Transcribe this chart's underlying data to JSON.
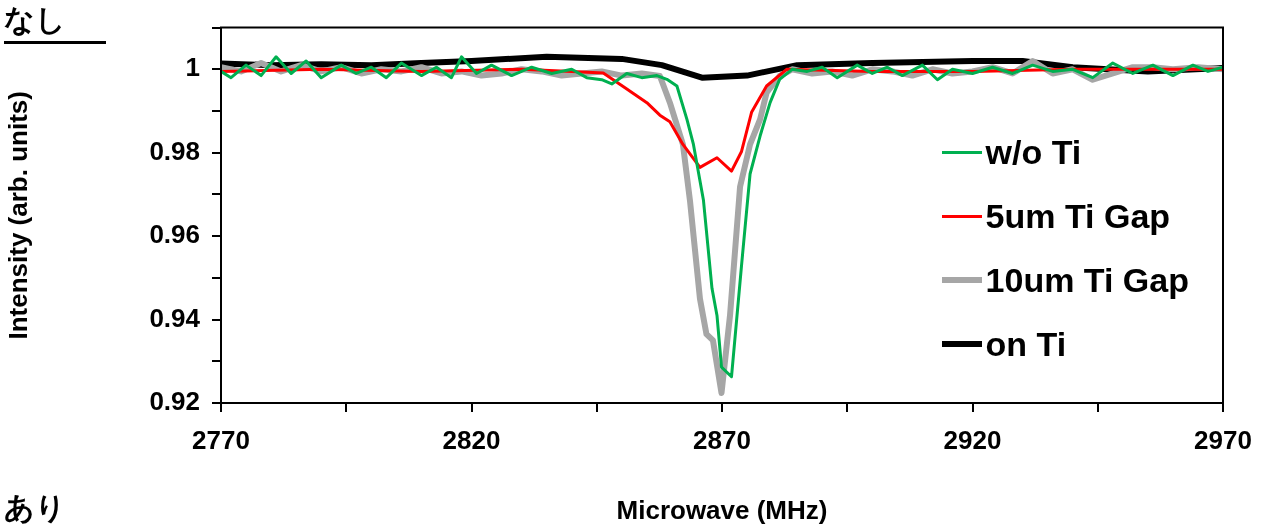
{
  "chart_data": {
    "type": "line",
    "xlabel": "Microwave (MHz)",
    "ylabel": "Intensity (arb. units)",
    "annotations": [
      "なし",
      "あり"
    ],
    "xlim": [
      2770,
      2970
    ],
    "xticks": [
      2770,
      {
        "value": 2795,
        "label": null
      },
      2820,
      {
        "value": 2845,
        "label": null
      },
      2870,
      {
        "value": 2895,
        "label": null
      },
      2920,
      {
        "value": 2945,
        "label": null
      },
      2970
    ],
    "ylim": [
      0.92,
      1.01
    ],
    "yticks": [
      0.92,
      {
        "value": 0.93,
        "label": null
      },
      0.94,
      {
        "value": 0.95,
        "label": null
      },
      0.96,
      {
        "value": 0.97,
        "label": null
      },
      0.98,
      {
        "value": 0.99,
        "label": null
      },
      1,
      {
        "value": 1.01,
        "label": null
      }
    ],
    "grid": false,
    "legend": "right",
    "marker": "none",
    "line_style": "solid",
    "series": [
      {
        "name": "w/o Ti",
        "color": "#00b050",
        "x": [
          2770,
          2772,
          2775,
          2778,
          2781,
          2784,
          2787,
          2790,
          2794,
          2797,
          2800,
          2803,
          2806,
          2810,
          2813,
          2816,
          2818,
          2821,
          2824,
          2828,
          2832,
          2836,
          2840,
          2843,
          2846,
          2848,
          2851,
          2854,
          2857,
          2859,
          2861,
          2863,
          2864.3,
          2866.3,
          2868,
          2869,
          2869.9,
          2871.9,
          2873.9,
          2875.6,
          2877.6,
          2879.6,
          2881.5,
          2884,
          2887,
          2890,
          2893,
          2897,
          2900,
          2903,
          2906,
          2910,
          2913,
          2916,
          2920,
          2924,
          2928,
          2932,
          2936,
          2940,
          2944,
          2948,
          2952,
          2956,
          2960,
          2964,
          2967,
          2970
        ],
        "values": [
          0.9995,
          0.998,
          1.001,
          0.9985,
          1.003,
          0.999,
          1.002,
          0.998,
          1.001,
          0.999,
          1.0005,
          0.998,
          1.0015,
          0.9985,
          1.0005,
          0.998,
          1.003,
          0.999,
          1.001,
          0.9985,
          1.0005,
          0.999,
          1.0,
          0.998,
          0.9975,
          0.9965,
          0.999,
          0.998,
          0.9985,
          0.9976,
          0.996,
          0.988,
          0.982,
          0.9686,
          0.9475,
          0.941,
          0.9286,
          0.9263,
          0.953,
          0.9749,
          0.984,
          0.992,
          0.9976,
          1.0,
          0.9995,
          1.0005,
          0.998,
          1.001,
          0.999,
          1.0005,
          0.9985,
          1.001,
          0.9975,
          1.0,
          0.999,
          1.0005,
          0.999,
          1.001,
          0.9995,
          1.0,
          0.998,
          1.0015,
          0.999,
          1.001,
          0.9985,
          1.001,
          0.9995,
          1.0005
        ]
      },
      {
        "name": "5um Ti Gap",
        "color": "#ff0000",
        "x": [
          2770,
          2790,
          2810,
          2830,
          2840,
          2846.3,
          2851,
          2855,
          2857.6,
          2859.6,
          2862.2,
          2865.6,
          2869,
          2871.9,
          2873.9,
          2875.9,
          2878.9,
          2882.9,
          2900,
          2920,
          2940,
          2970
        ],
        "values": [
          0.9995,
          1.0,
          0.9995,
          1.0,
          0.9995,
          0.9991,
          0.9953,
          0.992,
          0.989,
          0.9874,
          0.982,
          0.9765,
          0.9788,
          0.9756,
          0.9803,
          0.9897,
          0.996,
          1.0,
          0.9995,
          0.9995,
          1.0,
          1.0
        ]
      },
      {
        "name": "10um Ti Gap",
        "color": "#a6a6a6",
        "x": [
          2770,
          2774,
          2778,
          2782,
          2786,
          2790,
          2794,
          2798,
          2802,
          2806,
          2810,
          2814,
          2818,
          2822,
          2826,
          2830,
          2834,
          2838,
          2842,
          2846,
          2850,
          2854,
          2857.6,
          2859.6,
          2862.2,
          2863.6,
          2865.6,
          2866.9,
          2868.2,
          2869.9,
          2871.6,
          2873.6,
          2875.6,
          2877.6,
          2878.9,
          2881.5,
          2884,
          2888,
          2892,
          2896,
          2900,
          2904,
          2908,
          2912,
          2916,
          2920,
          2924,
          2928,
          2932,
          2936,
          2940,
          2944,
          2948,
          2952,
          2956,
          2960,
          2965,
          2970
        ],
        "values": [
          1.0005,
          0.9995,
          1.0015,
          0.9995,
          1.001,
          0.9995,
          1.0005,
          0.999,
          1.0,
          0.9995,
          1.0005,
          0.999,
          0.9995,
          0.9985,
          0.999,
          1.0,
          0.9995,
          0.9985,
          0.999,
          0.9995,
          0.9985,
          0.999,
          0.9984,
          0.992,
          0.982,
          0.9686,
          0.945,
          0.9365,
          0.935,
          0.9224,
          0.941,
          0.9718,
          0.982,
          0.988,
          0.9944,
          0.9984,
          1.0,
          0.999,
          0.9995,
          0.9985,
          1.0,
          0.9995,
          0.9985,
          1.0,
          0.999,
          0.9995,
          1.0005,
          0.999,
          1.002,
          0.999,
          1.0,
          0.9975,
          0.999,
          1.0005,
          1.0005,
          1.0,
          1.0005,
          1.0
        ]
      },
      {
        "name": "on Ti",
        "color": "#000000",
        "x": [
          2770,
          2780,
          2790,
          2800,
          2810,
          2820,
          2835,
          2850,
          2858,
          2866,
          2875,
          2885,
          2900,
          2920,
          2930,
          2940,
          2955,
          2970
        ],
        "values": [
          1.0014,
          1.001,
          1.0012,
          1.001,
          1.0015,
          1.002,
          1.003,
          1.0025,
          1.001,
          0.998,
          0.9985,
          1.001,
          1.0015,
          1.002,
          1.002,
          1.0005,
          0.9995,
          1.0003
        ]
      }
    ]
  }
}
